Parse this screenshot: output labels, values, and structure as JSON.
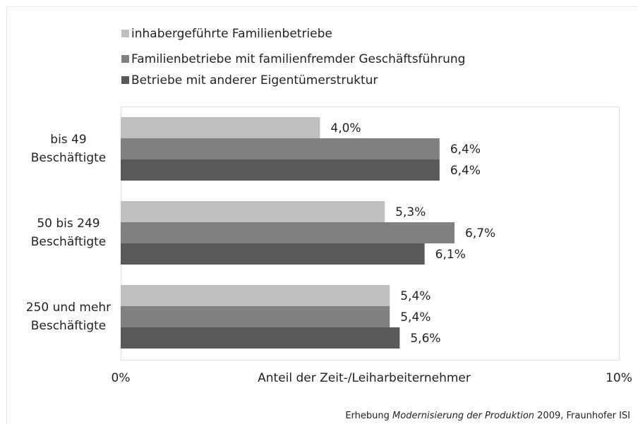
{
  "chart_data": {
    "type": "hbar",
    "categories": [
      [
        "bis 49",
        "Beschäftigte"
      ],
      [
        "50 bis 249",
        "Beschäftigte"
      ],
      [
        "250 und mehr",
        "Beschäftigte"
      ]
    ],
    "series": [
      {
        "name": "inhabergeführte Familienbetriebe",
        "color": "#bfbfbf",
        "values": [
          4.0,
          5.3,
          5.4
        ],
        "value_labels": [
          "4,0%",
          "5,3%",
          "5,4%"
        ]
      },
      {
        "name": "Familienbetriebe mit familienfremder Geschäftsführung",
        "color": "#808080",
        "values": [
          6.4,
          6.7,
          5.4
        ],
        "value_labels": [
          "6,4%",
          "6,7%",
          "5,4%"
        ]
      },
      {
        "name": "Betriebe mit anderer Eigentümerstruktur",
        "color": "#595959",
        "values": [
          6.4,
          6.1,
          5.6
        ],
        "value_labels": [
          "6,4%",
          "6,1%",
          "5,6%"
        ]
      }
    ],
    "xlim": [
      0,
      10
    ],
    "xticks": [
      {
        "value": 0,
        "label": "0%"
      },
      {
        "value": 10,
        "label": "10%"
      }
    ],
    "xlabel": "Anteil der Zeit-/Leiharbeiternehmer",
    "source": {
      "prefix": "Erhebung ",
      "italic": "Modernisierung der Produktion",
      "suffix": " 2009, Fraunhofer ISI"
    }
  }
}
